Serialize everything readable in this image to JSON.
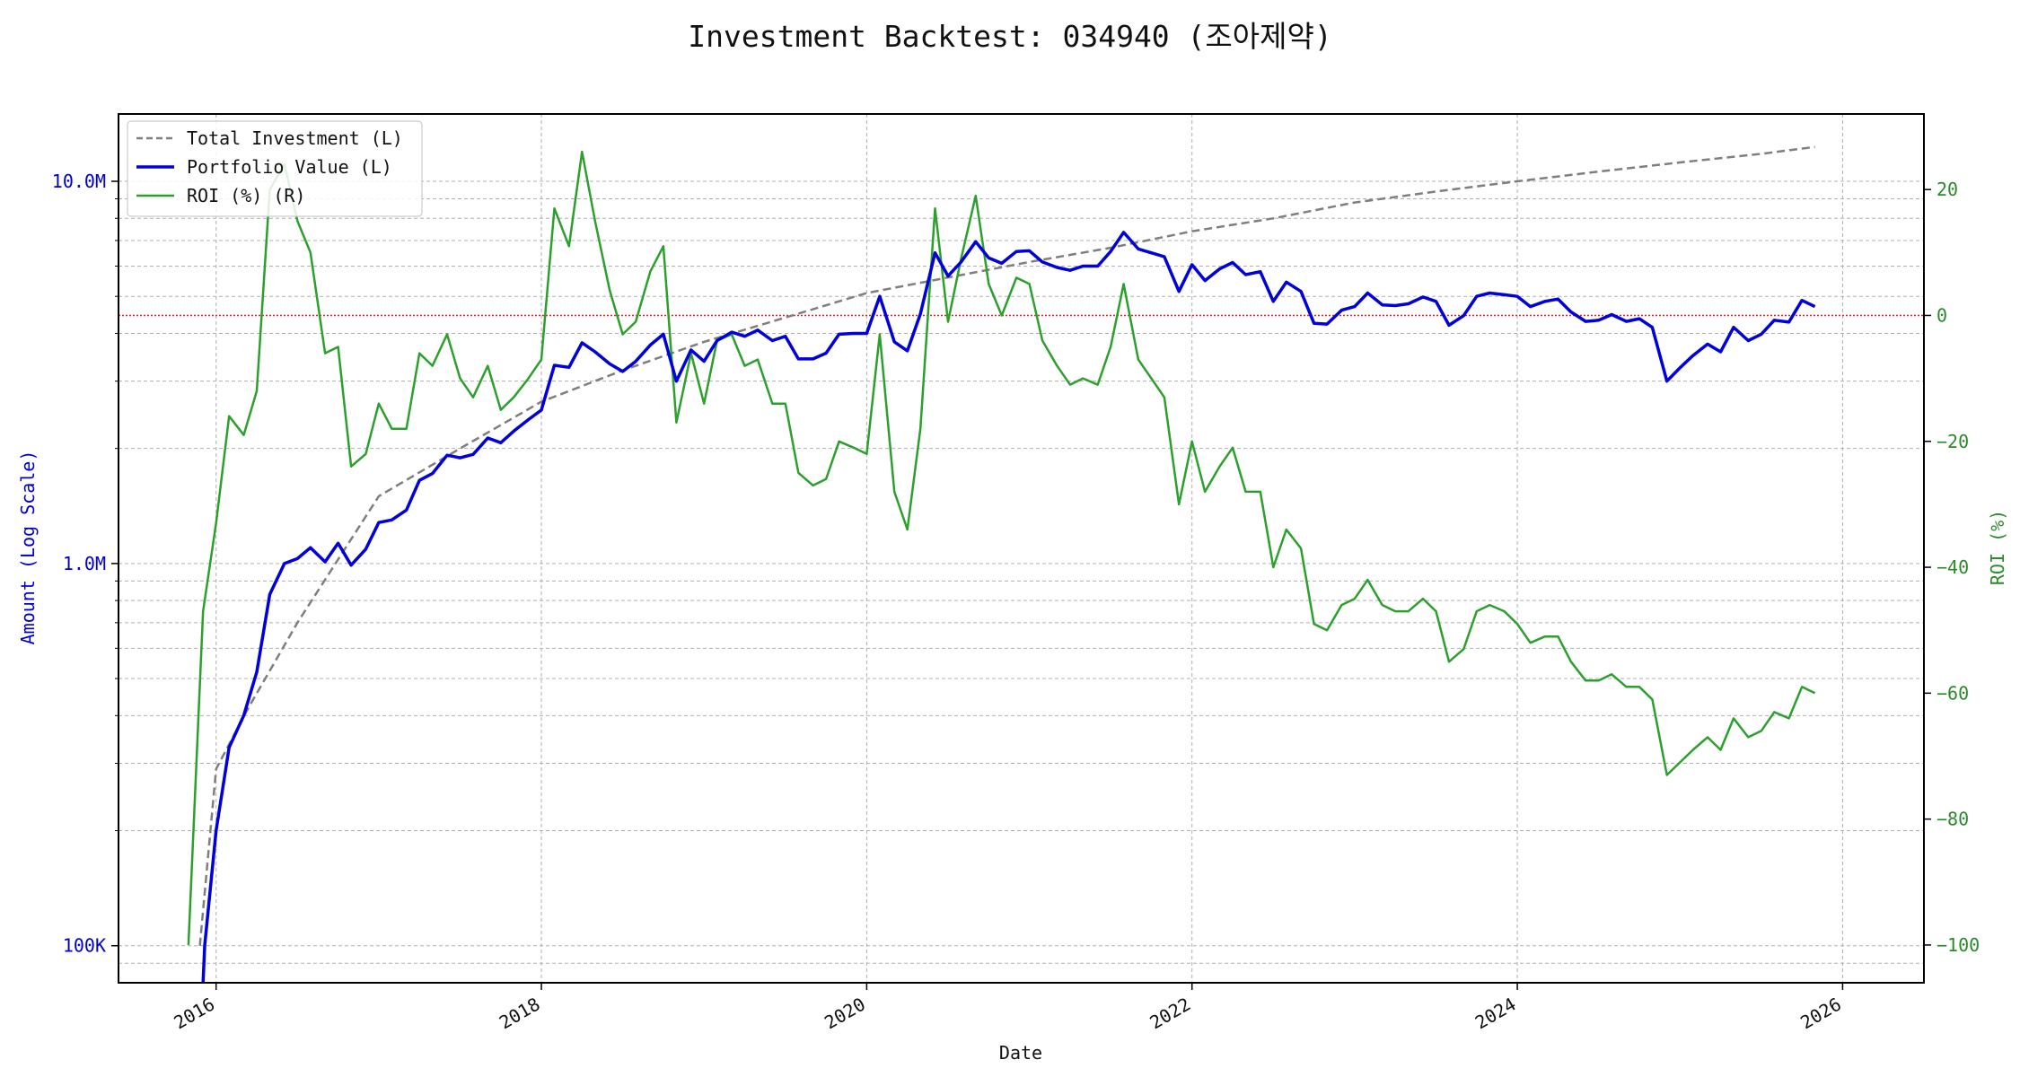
{
  "chart_data": {
    "type": "line",
    "title": "Investment Backtest: 034940 (조아제약)",
    "xlabel": "Date",
    "ylabel_left": "Amount (Log Scale)",
    "ylabel_right": "ROI (%)",
    "x_range": [
      2015.4,
      2026.5
    ],
    "ylim_left": [
      80000,
      15000000
    ],
    "ylim_right": [
      -106,
      32
    ],
    "left_scale": "log",
    "grid": true,
    "legend_position": "upper left",
    "x_ticks": [
      "2016",
      "2018",
      "2020",
      "2022",
      "2024",
      "2026"
    ],
    "left_ticks": [
      "100K",
      "1.0M",
      "10.0M"
    ],
    "right_ticks": [
      "20",
      "0",
      "-20",
      "-40",
      "-60",
      "-80",
      "-100"
    ],
    "reference_line": {
      "axis": "right",
      "value": 0,
      "color": "#d62728",
      "style": "dotted"
    },
    "colors": {
      "total_investment": "#7f7f7f",
      "portfolio_value": "#0000dd",
      "roi": "#2ca02c",
      "left_axis": "#0000cc",
      "right_axis": "#2a8a2a"
    },
    "series": [
      {
        "name": "Total Investment (L)",
        "axis": "left",
        "style": "dashed",
        "x": [
          2015.9,
          2016.0,
          2016.2,
          2016.5,
          2017.0,
          2017.5,
          2018.0,
          2018.5,
          2019.0,
          2019.5,
          2020.0,
          2020.5,
          2021.0,
          2021.5,
          2022.0,
          2022.5,
          2023.0,
          2023.5,
          2024.0,
          2024.5,
          2025.0,
          2025.5,
          2025.83
        ],
        "values": [
          100000,
          290000,
          420000,
          700000,
          1500000,
          2000000,
          2650000,
          3200000,
          3800000,
          4400000,
          5100000,
          5600000,
          6150000,
          6700000,
          7400000,
          8000000,
          8800000,
          9400000,
          10000000,
          10600000,
          11200000,
          11800000,
          12300000
        ]
      },
      {
        "name": "Portfolio Value (L)",
        "axis": "left",
        "style": "solid",
        "x": [
          2015.92,
          2015.93,
          2016.0,
          2016.08,
          2016.17,
          2016.25,
          2016.33,
          2016.42,
          2016.5,
          2016.58,
          2016.67,
          2016.75,
          2016.83,
          2016.92,
          2017.0,
          2017.08,
          2017.17,
          2017.25,
          2017.33,
          2017.42,
          2017.5,
          2017.58,
          2017.67,
          2017.75,
          2017.83,
          2017.92,
          2018.0,
          2018.08,
          2018.17,
          2018.25,
          2018.33,
          2018.42,
          2018.5,
          2018.58,
          2018.67,
          2018.75,
          2018.83,
          2018.92,
          2019.0,
          2019.08,
          2019.17,
          2019.25,
          2019.33,
          2019.42,
          2019.5,
          2019.58,
          2019.67,
          2019.75,
          2019.83,
          2019.92,
          2020.0,
          2020.08,
          2020.17,
          2020.25,
          2020.33,
          2020.42,
          2020.5,
          2020.58,
          2020.67,
          2020.75,
          2020.83,
          2020.92,
          2021.0,
          2021.08,
          2021.17,
          2021.25,
          2021.33,
          2021.42,
          2021.5,
          2021.58,
          2021.67,
          2021.75,
          2021.83,
          2021.92,
          2022.0,
          2022.08,
          2022.17,
          2022.25,
          2022.33,
          2022.42,
          2022.5,
          2022.58,
          2022.67,
          2022.75,
          2022.83,
          2022.92,
          2023.0,
          2023.08,
          2023.17,
          2023.25,
          2023.33,
          2023.42,
          2023.5,
          2023.58,
          2023.67,
          2023.75,
          2023.83,
          2023.92,
          2024.0,
          2024.08,
          2024.17,
          2024.25,
          2024.33,
          2024.42,
          2024.5,
          2024.58,
          2024.67,
          2024.75,
          2024.83,
          2024.92,
          2025.0,
          2025.08,
          2025.17,
          2025.25,
          2025.33,
          2025.42,
          2025.5,
          2025.58,
          2025.67,
          2025.75,
          2025.83
        ],
        "values": [
          80000,
          100000,
          200000,
          330000,
          400000,
          520000,
          830000,
          1000000,
          1030000,
          1100000,
          1010000,
          1130000,
          990000,
          1090000,
          1280000,
          1300000,
          1380000,
          1650000,
          1720000,
          1920000,
          1890000,
          1930000,
          2130000,
          2070000,
          2220000,
          2380000,
          2520000,
          3300000,
          3260000,
          3780000,
          3580000,
          3330000,
          3180000,
          3380000,
          3730000,
          3980000,
          3000000,
          3620000,
          3380000,
          3830000,
          4030000,
          3930000,
          4080000,
          3830000,
          3930000,
          3430000,
          3430000,
          3550000,
          3980000,
          4000000,
          4000000,
          5000000,
          3800000,
          3600000,
          4500000,
          6500000,
          5650000,
          6150000,
          6950000,
          6300000,
          6100000,
          6550000,
          6580000,
          6150000,
          5950000,
          5850000,
          6000000,
          6000000,
          6550000,
          7350000,
          6650000,
          6500000,
          6350000,
          5150000,
          6050000,
          5500000,
          5900000,
          6130000,
          5700000,
          5800000,
          4850000,
          5450000,
          5150000,
          4250000,
          4230000,
          4600000,
          4700000,
          5100000,
          4750000,
          4730000,
          4780000,
          4980000,
          4850000,
          4200000,
          4450000,
          5000000,
          5100000,
          5050000,
          5000000,
          4700000,
          4850000,
          4920000,
          4550000,
          4300000,
          4330000,
          4480000,
          4300000,
          4370000,
          4150000,
          3000000,
          3250000,
          3500000,
          3750000,
          3580000,
          4150000,
          3830000,
          3980000,
          4330000,
          4280000,
          4880000,
          4700000
        ]
      },
      {
        "name": "ROI (%) (R)",
        "axis": "right",
        "style": "solid",
        "x": [
          2015.83,
          2015.92,
          2016.0,
          2016.08,
          2016.17,
          2016.25,
          2016.33,
          2016.42,
          2016.5,
          2016.58,
          2016.67,
          2016.75,
          2016.83,
          2016.92,
          2017.0,
          2017.08,
          2017.17,
          2017.25,
          2017.33,
          2017.42,
          2017.5,
          2017.58,
          2017.67,
          2017.75,
          2017.83,
          2017.92,
          2018.0,
          2018.08,
          2018.17,
          2018.25,
          2018.33,
          2018.42,
          2018.5,
          2018.58,
          2018.67,
          2018.75,
          2018.83,
          2018.92,
          2019.0,
          2019.08,
          2019.17,
          2019.25,
          2019.33,
          2019.42,
          2019.5,
          2019.58,
          2019.67,
          2019.75,
          2019.83,
          2019.92,
          2020.0,
          2020.08,
          2020.17,
          2020.25,
          2020.33,
          2020.42,
          2020.5,
          2020.58,
          2020.67,
          2020.75,
          2020.83,
          2020.92,
          2021.0,
          2021.08,
          2021.17,
          2021.25,
          2021.33,
          2021.42,
          2021.5,
          2021.58,
          2021.67,
          2021.75,
          2021.83,
          2021.92,
          2022.0,
          2022.08,
          2022.17,
          2022.25,
          2022.33,
          2022.42,
          2022.5,
          2022.58,
          2022.67,
          2022.75,
          2022.83,
          2022.92,
          2023.0,
          2023.08,
          2023.17,
          2023.25,
          2023.33,
          2023.42,
          2023.5,
          2023.58,
          2023.67,
          2023.75,
          2023.83,
          2023.92,
          2024.0,
          2024.08,
          2024.17,
          2024.25,
          2024.33,
          2024.42,
          2024.5,
          2024.58,
          2024.67,
          2024.75,
          2024.83,
          2024.92,
          2025.0,
          2025.08,
          2025.17,
          2025.25,
          2025.33,
          2025.42,
          2025.5,
          2025.58,
          2025.67,
          2025.75,
          2025.83
        ],
        "values": [
          -100,
          -47,
          -33,
          -16,
          -19,
          -12,
          20,
          24,
          15,
          10,
          -6,
          -5,
          -24,
          -22,
          -14,
          -18,
          -18,
          -6,
          -8,
          -3,
          -10,
          -13,
          -8,
          -15,
          -13,
          -10,
          -7,
          17,
          11,
          26,
          15,
          4,
          -3,
          -1,
          7,
          11,
          -17,
          -6,
          -14,
          -4,
          -3,
          -8,
          -7,
          -14,
          -14,
          -25,
          -27,
          -26,
          -20,
          -21,
          -22,
          -3,
          -28,
          -34,
          -18,
          17,
          -1,
          9,
          19,
          5,
          0,
          6,
          5,
          -4,
          -8,
          -11,
          -10,
          -11,
          -5,
          5,
          -7,
          -10,
          -13,
          -30,
          -20,
          -28,
          -24,
          -21,
          -28,
          -28,
          -40,
          -34,
          -37,
          -49,
          -50,
          -46,
          -45,
          -42,
          -46,
          -47,
          -47,
          -45,
          -47,
          -55,
          -53,
          -47,
          -46,
          -47,
          -49,
          -52,
          -51,
          -51,
          -55,
          -58,
          -58,
          -57,
          -59,
          -59,
          -61,
          -73,
          -71,
          -69,
          -67,
          -69,
          -64,
          -67,
          -66,
          -63,
          -64,
          -59,
          -60
        ]
      }
    ]
  }
}
